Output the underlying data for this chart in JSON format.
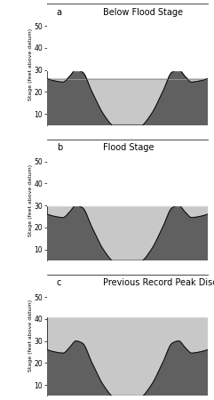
{
  "panels": [
    {
      "label": "a",
      "title": "Below Flood Stage",
      "water_level": 26,
      "ylim": [
        5,
        60
      ]
    },
    {
      "label": "b",
      "title": "Flood Stage",
      "water_level": 30,
      "ylim": [
        5,
        60
      ]
    },
    {
      "label": "c",
      "title": "Previous Record Peak Discharge",
      "water_level": 41,
      "ylim": [
        5,
        60
      ]
    }
  ],
  "yticks": [
    10,
    20,
    30,
    40,
    50
  ],
  "ylabel": "Stage (feet above datum)",
  "bank_color": "#606060",
  "water_color": "#c8c8c8",
  "water_line_color": "#999999",
  "background_color": "#ffffff",
  "figsize": [
    2.41,
    4.5
  ],
  "dpi": 100,
  "channel_x": [
    0.0,
    0.05,
    0.1,
    0.14,
    0.18,
    0.22,
    0.28,
    0.35,
    0.42,
    0.5,
    0.58,
    0.65,
    0.72,
    0.78,
    0.82,
    0.86,
    0.9,
    0.95,
    1.0
  ],
  "channel_y": [
    26,
    25,
    24.5,
    27,
    30,
    29,
    20,
    10,
    4,
    2,
    4,
    10,
    20,
    29,
    30,
    27,
    24.5,
    25,
    26
  ]
}
